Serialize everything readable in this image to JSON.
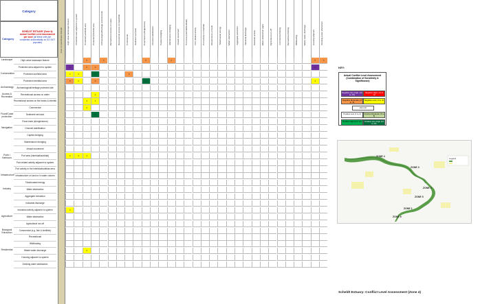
{
  "header": {
    "category_title": "Category",
    "side_label": "Category",
    "note": {
      "prefix": "SCHELDT ESTUARY (Zone 4): ",
      "highlight": "Actual Conflict Level Assessment per zone",
      "body": "(all these cells are completed automatically so DO NOT populate)"
    },
    "zone_label": "Zone 4 Lower/Outer Scheldt"
  },
  "column_groups": [
    "Landscape",
    "Conservation",
    "Archaeology",
    "Access & Recreation",
    "Flood/Coast protection",
    "Navigation",
    "Ports / Harbours",
    "Infrastructure",
    "Industry",
    "Agriculture",
    "Biological Extraction",
    "Residential"
  ],
  "columns": [
    "High value landscape feature",
    "Protected area adjacent to system",
    "Protected sub/tidal area",
    "Protected intertidal area",
    "Archaeological/heritage protected site",
    "Recreational access on water",
    "Recreational access on bank/tidal",
    "Commercial",
    "Sediment set-back",
    "Flood bank (shingle/stone)",
    "Channel stabilisation",
    "Capital dredging",
    "Maintenance dredging",
    "Vessel movement",
    "Port area (intertidal/subtidal)",
    "Port related activity",
    "Port activity in intertidal",
    "Infrastructure on bank",
    "Tidal/coastal energy",
    "Water abstraction",
    "Aggregate extraction",
    "Industrial discharge",
    "Industrial activity",
    "Water abstraction (agri)",
    "Agricultural run-off",
    "Commercial fishing",
    "Recreational fishing",
    "Wildfowling",
    "Waste water discharge",
    "Housing adjacent",
    "Drinking water abstraction"
  ],
  "rows": [
    {
      "cat": "Landscape",
      "label": "High value landscape feature",
      "cells": [
        "w",
        "",
        "5",
        "",
        "5",
        "",
        "",
        "",
        "",
        "5",
        "",
        "",
        "6",
        "",
        "",
        "",
        "",
        "",
        "",
        "",
        "",
        "",
        "",
        "",
        "",
        "",
        "",
        "",
        "",
        "5",
        "5"
      ]
    },
    {
      "cat": "",
      "label": "Protected area adjacent to system",
      "cells": [
        "16",
        "",
        "5",
        "6",
        "",
        "",
        "",
        "",
        "",
        "",
        "",
        "",
        "",
        "",
        "",
        "",
        "",
        "",
        "",
        "",
        "",
        "",
        "",
        "",
        "",
        "",
        "",
        "",
        "",
        "13",
        ""
      ]
    },
    {
      "cat": "Conservation",
      "label": "Protected sub/tidal area",
      "cells": [
        "4",
        "4",
        "",
        "11",
        "",
        "",
        "",
        "6",
        "",
        "",
        "",
        "",
        "",
        "",
        "",
        "",
        "",
        "",
        "",
        "",
        "",
        "",
        "",
        "",
        "",
        "",
        "",
        "",
        "",
        "",
        ""
      ]
    },
    {
      "cat": "",
      "label": "Protected intertidal area",
      "cells": [
        "5",
        "4",
        "",
        "6",
        "",
        "",
        "",
        "",
        "",
        "10",
        "",
        "",
        "",
        "",
        "",
        "",
        "",
        "",
        "",
        "",
        "",
        "",
        "",
        "",
        "",
        "",
        "",
        "",
        "",
        "4",
        ""
      ]
    },
    {
      "cat": "Archaeology",
      "label": "Archaeological/heritage protected site",
      "cells": [
        "",
        "",
        "",
        "",
        "",
        "",
        "",
        "",
        "",
        "",
        "",
        "",
        "",
        "",
        "",
        "",
        "",
        "",
        "",
        "",
        "",
        "",
        "",
        "",
        "",
        "",
        "",
        "",
        "",
        "",
        ""
      ]
    },
    {
      "cat": "Access & Recreation",
      "label": "Recreational access on water",
      "cells": [
        "",
        "",
        "",
        "4",
        "",
        "",
        "",
        "",
        "",
        "",
        "",
        "",
        "",
        "",
        "",
        "",
        "",
        "",
        "",
        "",
        "",
        "",
        "",
        "",
        "",
        "",
        "",
        "",
        "",
        "",
        ""
      ]
    },
    {
      "cat": "",
      "label": "Recreational access on the banks & intertidal",
      "cells": [
        "",
        "",
        "4",
        "4",
        "",
        "",
        "",
        "",
        "",
        "",
        "",
        "",
        "",
        "",
        "",
        "",
        "",
        "",
        "",
        "",
        "",
        "",
        "",
        "",
        "",
        "",
        "",
        "",
        "",
        "",
        ""
      ]
    },
    {
      "cat": "",
      "label": "Commercial",
      "cells": [
        "",
        "",
        "4",
        "",
        "",
        "",
        "",
        "",
        "",
        "",
        "",
        "",
        "",
        "",
        "",
        "",
        "",
        "",
        "",
        "",
        "",
        "",
        "",
        "",
        "",
        "",
        "",
        "",
        "",
        "",
        ""
      ]
    },
    {
      "cat": "Flood/Coast protection",
      "label": "Sediment set-back",
      "cells": [
        "",
        "",
        "",
        "11",
        "",
        "",
        "",
        "",
        "",
        "",
        "",
        "",
        "",
        "",
        "",
        "",
        "",
        "",
        "",
        "",
        "",
        "",
        "",
        "",
        "",
        "",
        "",
        "",
        "",
        "",
        ""
      ]
    },
    {
      "cat": "",
      "label": "Flood bank (shingle/stone)",
      "cells": [
        "",
        "",
        "",
        "",
        "",
        "",
        "",
        "",
        "",
        "",
        "",
        "",
        "",
        "",
        "",
        "",
        "",
        "",
        "",
        "",
        "",
        "",
        "",
        "",
        "",
        "",
        "",
        "",
        "",
        "",
        ""
      ]
    },
    {
      "cat": "Navigation",
      "label": "Channel stabilisation",
      "cells": [
        "",
        "",
        "",
        "",
        "",
        "",
        "",
        "",
        "",
        "",
        "",
        "",
        "",
        "",
        "",
        "",
        "",
        "",
        "",
        "",
        "",
        "",
        "",
        "",
        "",
        "",
        "",
        "",
        "",
        "",
        ""
      ]
    },
    {
      "cat": "",
      "label": "Capital dredging",
      "cells": [
        "",
        "",
        "",
        "",
        "",
        "",
        "",
        "",
        "",
        "",
        "",
        "",
        "",
        "",
        "",
        "",
        "",
        "",
        "",
        "",
        "",
        "",
        "",
        "",
        "",
        "",
        "",
        "",
        "",
        "",
        ""
      ]
    },
    {
      "cat": "",
      "label": "Maintenance dredging",
      "cells": [
        "",
        "",
        "",
        "",
        "",
        "",
        "",
        "",
        "",
        "",
        "",
        "",
        "",
        "",
        "",
        "",
        "",
        "",
        "",
        "",
        "",
        "",
        "",
        "",
        "",
        "",
        "",
        "",
        "",
        "",
        ""
      ]
    },
    {
      "cat": "",
      "label": "Vessel movement",
      "cells": [
        "",
        "",
        "",
        "",
        "",
        "",
        "",
        "",
        "",
        "",
        "",
        "",
        "",
        "",
        "",
        "",
        "",
        "",
        "",
        "",
        "",
        "",
        "",
        "",
        "",
        "",
        "",
        "",
        "",
        "",
        ""
      ]
    },
    {
      "cat": "Ports / Harbours",
      "label": "Port area (intertidal/subtidal)",
      "cells": [
        "4",
        "4",
        "4",
        "",
        "",
        "",
        "",
        "",
        "",
        "",
        "",
        "",
        "",
        "",
        "",
        "",
        "",
        "",
        "",
        "",
        "",
        "",
        "",
        "",
        "",
        "",
        "",
        "",
        "",
        "",
        ""
      ]
    },
    {
      "cat": "",
      "label": "Port related activity adjacent to system",
      "cells": [
        "",
        "",
        "",
        "",
        "",
        "",
        "",
        "",
        "",
        "",
        "",
        "",
        "",
        "",
        "",
        "",
        "",
        "",
        "",
        "",
        "",
        "",
        "",
        "",
        "",
        "",
        "",
        "",
        "",
        "",
        ""
      ]
    },
    {
      "cat": "",
      "label": "Port activity in the intertidal/subtidal area",
      "cells": [
        "",
        "",
        "",
        "",
        "",
        "",
        "",
        "",
        "",
        "",
        "",
        "",
        "",
        "",
        "",
        "",
        "",
        "",
        "",
        "",
        "",
        "",
        "",
        "",
        "",
        "",
        "",
        "",
        "",
        "",
        ""
      ]
    },
    {
      "cat": "Infrastructure",
      "label": "Infrastructure on land or in water column",
      "cells": [
        "",
        "",
        "",
        "",
        "",
        "",
        "",
        "",
        "",
        "",
        "",
        "",
        "",
        "",
        "",
        "",
        "",
        "",
        "",
        "",
        "",
        "",
        "",
        "",
        "",
        "",
        "",
        "",
        "",
        "",
        ""
      ]
    },
    {
      "cat": "",
      "label": "Tidal/coastal energy",
      "cells": [
        "",
        "",
        "",
        "",
        "",
        "",
        "",
        "",
        "",
        "",
        "",
        "",
        "",
        "",
        "",
        "",
        "",
        "",
        "",
        "",
        "",
        "",
        "",
        "",
        "",
        "",
        "",
        "",
        "",
        "",
        ""
      ]
    },
    {
      "cat": "Industry",
      "label": "Water abstraction",
      "cells": [
        "",
        "",
        "",
        "",
        "",
        "",
        "",
        "",
        "",
        "",
        "",
        "",
        "",
        "",
        "",
        "",
        "",
        "",
        "",
        "",
        "",
        "",
        "",
        "",
        "",
        "",
        "",
        "",
        "",
        "",
        ""
      ]
    },
    {
      "cat": "",
      "label": "Aggregate extraction",
      "cells": [
        "",
        "",
        "",
        "",
        "",
        "",
        "",
        "",
        "",
        "",
        "",
        "",
        "",
        "",
        "",
        "",
        "",
        "",
        "",
        "",
        "",
        "",
        "",
        "",
        "",
        "",
        "",
        "",
        "",
        "",
        ""
      ]
    },
    {
      "cat": "",
      "label": "Industrial discharge",
      "cells": [
        "",
        "",
        "",
        "",
        "",
        "",
        "",
        "",
        "",
        "",
        "",
        "",
        "",
        "",
        "",
        "",
        "",
        "",
        "",
        "",
        "",
        "",
        "",
        "",
        "",
        "",
        "",
        "",
        "",
        "",
        ""
      ]
    },
    {
      "cat": "",
      "label": "Industrial activity adjacent to system",
      "cells": [
        "4",
        "",
        "",
        "",
        "",
        "",
        "",
        "",
        "",
        "",
        "",
        "",
        "",
        "",
        "",
        "",
        "",
        "",
        "",
        "",
        "",
        "",
        "",
        "",
        "",
        "",
        "",
        "",
        "",
        "",
        ""
      ]
    },
    {
      "cat": "Agriculture",
      "label": "Water abstraction",
      "cells": [
        "",
        "",
        "",
        "",
        "",
        "",
        "",
        "",
        "",
        "",
        "",
        "",
        "",
        "",
        "",
        "",
        "",
        "",
        "",
        "",
        "",
        "",
        "",
        "",
        "",
        "",
        "",
        "",
        "",
        "",
        ""
      ]
    },
    {
      "cat": "",
      "label": "Agricultural run-off",
      "cells": [
        "",
        "",
        "",
        "",
        "",
        "",
        "",
        "",
        "",
        "",
        "",
        "",
        "",
        "",
        "",
        "",
        "",
        "",
        "",
        "",
        "",
        "",
        "",
        "",
        "",
        "",
        "",
        "",
        "",
        "",
        ""
      ]
    },
    {
      "cat": "Biological Extraction",
      "label": "Commercial (e.g. fish & shellfish)",
      "cells": [
        "",
        "",
        "",
        "",
        "",
        "",
        "",
        "",
        "",
        "",
        "",
        "",
        "",
        "",
        "",
        "",
        "",
        "",
        "",
        "",
        "",
        "",
        "",
        "",
        "",
        "",
        "",
        "",
        "",
        "",
        ""
      ]
    },
    {
      "cat": "",
      "label": "Recreational",
      "cells": [
        "",
        "",
        "",
        "",
        "",
        "",
        "",
        "",
        "",
        "",
        "",
        "",
        "",
        "",
        "",
        "",
        "",
        "",
        "",
        "",
        "",
        "",
        "",
        "",
        "",
        "",
        "",
        "",
        "",
        "",
        ""
      ]
    },
    {
      "cat": "",
      "label": "Wildfowling",
      "cells": [
        "",
        "",
        "",
        "",
        "",
        "",
        "",
        "",
        "",
        "",
        "",
        "",
        "",
        "",
        "",
        "",
        "",
        "",
        "",
        "",
        "",
        "",
        "",
        "",
        "",
        "",
        "",
        "",
        "",
        "",
        ""
      ]
    },
    {
      "cat": "Residential",
      "label": "Waste water discharge",
      "cells": [
        "",
        "",
        "4",
        "",
        "",
        "",
        "",
        "",
        "",
        "",
        "",
        "",
        "",
        "",
        "",
        "",
        "",
        "",
        "",
        "",
        "",
        "",
        "",
        "",
        "",
        "",
        "",
        "",
        "",
        "",
        ""
      ]
    },
    {
      "cat": "",
      "label": "Housing adjacent to system",
      "cells": [
        "",
        "",
        "",
        "",
        "",
        "",
        "",
        "",
        "",
        "",
        "",
        "",
        "",
        "",
        "",
        "",
        "",
        "",
        "",
        "",
        "",
        "",
        "",
        "",
        "",
        "",
        "",
        "",
        "",
        "",
        ""
      ]
    },
    {
      "cat": "",
      "label": "Drinking water abstraction",
      "cells": [
        "",
        "",
        "",
        "",
        "",
        "",
        "",
        "",
        "",
        "",
        "",
        "",
        "",
        "",
        "",
        "",
        "",
        "",
        "",
        "",
        "",
        "",
        "",
        "",
        "",
        "",
        "",
        "",
        "",
        "",
        ""
      ]
    }
  ],
  "key": {
    "title": "KEY:",
    "heading": "Actual Conflict Level Assessment (Combination of Sensitivity & Significance)",
    "items": [
      {
        "label": "Negative Very High (-16 to -13)",
        "color": "#7030a0"
      },
      {
        "label": "Negative High (-12 to -9)",
        "color": "#ff0000"
      },
      {
        "label": "Negative Moderate (-8 to -5)",
        "color": "#f79646"
      },
      {
        "label": "Negative Low (-1 to -4)",
        "color": "#ffff00"
      },
      {
        "label": "Zero (0)",
        "color": "#ffffff"
      },
      {
        "label": "Positive Low (1 to 4)",
        "color": "#ffffff"
      },
      {
        "label": "Positive Moderate (5 to 8)",
        "color": "#c3d69b"
      },
      {
        "label": "Positive High (9 to 12)",
        "color": "#00b050"
      },
      {
        "label": "Positive Very High (13 to 16)",
        "color": "#00703c"
      }
    ]
  },
  "map": {
    "zones": [
      "ZONE 4",
      "ZONE 3",
      "ZONE 2",
      "ZONE 1",
      "ZONE 5",
      "ZONE 6"
    ],
    "legend_title": "Legend"
  },
  "footer": "Scheldt Estuary:  Conflict Level Assessment (Zone 4)"
}
